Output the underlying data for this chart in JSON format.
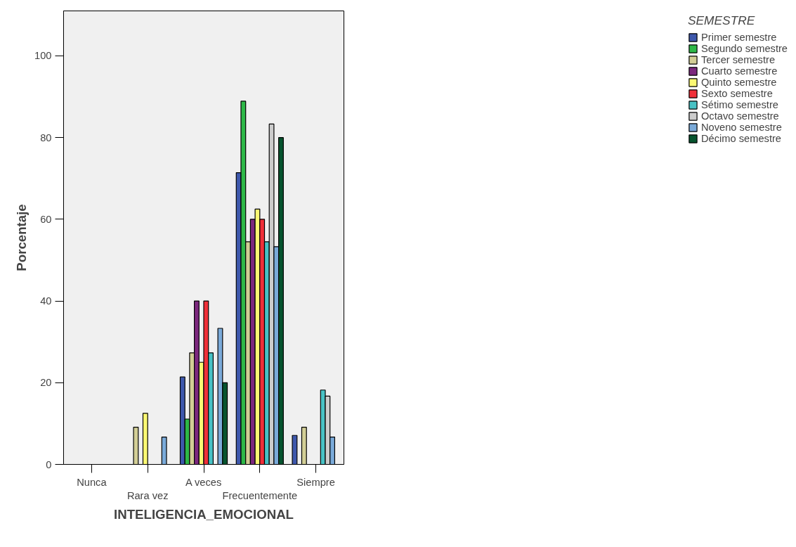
{
  "chart_data": {
    "type": "bar",
    "xlabel": "INTELIGENCIA_EMOCIONAL",
    "ylabel": "Porcentaje",
    "legend_title": "SEMESTRE",
    "legend": "right",
    "grid": false,
    "categories": [
      "Nunca",
      "Rara vez",
      "A veces",
      "Frecuentemente",
      "Siempre"
    ],
    "ylim": [
      0,
      111
    ],
    "yticks": [
      0,
      20,
      40,
      60,
      80,
      100
    ],
    "series": [
      {
        "name": "Primer semestre",
        "color": "#3e58ac",
        "values": [
          null,
          null,
          21.4,
          71.4,
          7.1
        ]
      },
      {
        "name": "Segundo semestre",
        "color": "#2eb848",
        "values": [
          null,
          null,
          11.1,
          88.9,
          null
        ]
      },
      {
        "name": "Tercer semestre",
        "color": "#d2ce96",
        "values": [
          null,
          9.1,
          27.3,
          54.5,
          9.1
        ]
      },
      {
        "name": "Cuarto semestre",
        "color": "#7c287e",
        "values": [
          null,
          null,
          40,
          60,
          null
        ]
      },
      {
        "name": "Quinto semestre",
        "color": "#fbf873",
        "values": [
          null,
          12.5,
          25,
          62.5,
          null
        ]
      },
      {
        "name": "Sexto semestre",
        "color": "#f03039",
        "values": [
          null,
          null,
          40,
          60,
          null
        ]
      },
      {
        "name": "Sétimo semestre",
        "color": "#48c2c5",
        "values": [
          null,
          null,
          27.3,
          54.5,
          18.2
        ]
      },
      {
        "name": "Octavo semestre",
        "color": "#cccccc",
        "values": [
          null,
          null,
          null,
          83.3,
          16.7
        ]
      },
      {
        "name": "Noveno semestre",
        "color": "#7aaad9",
        "values": [
          null,
          6.7,
          33.3,
          53.3,
          6.7
        ]
      },
      {
        "name": "Décimo semestre",
        "color": "#06542e",
        "values": [
          null,
          null,
          20,
          80,
          null
        ]
      }
    ]
  }
}
